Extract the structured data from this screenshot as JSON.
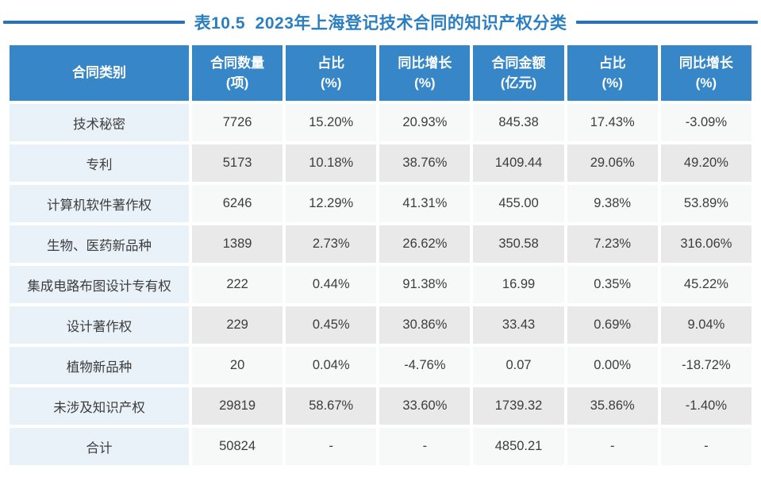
{
  "page": {
    "title": "表10.5  2023年上海登记技术合同的知识产权分类"
  },
  "colors": {
    "header_bg": "#3787c8",
    "header_text": "#ffffff",
    "category_bg": "#e9f1f9",
    "row_light_bg": "#f7f8f8",
    "row_dark_bg": "#e9e9e9",
    "title_blue": "#2b7ec0",
    "rule_blue": "#2a72b4",
    "cell_text": "#3d3d3d"
  },
  "chart_data": {
    "type": "table",
    "title": "表10.5  2023年上海登记技术合同的知识产权分类",
    "columns": [
      "合同类别",
      "合同数量\n(项)",
      "占比\n(%)",
      "同比增长\n(%)",
      "合同金额\n(亿元)",
      "占比\n(%)",
      "同比增长\n(%)"
    ],
    "rows": [
      [
        "技术秘密",
        "7726",
        "15.20%",
        "20.93%",
        "845.38",
        "17.43%",
        "-3.09%"
      ],
      [
        "专利",
        "5173",
        "10.18%",
        "38.76%",
        "1409.44",
        "29.06%",
        "49.20%"
      ],
      [
        "计算机软件著作权",
        "6246",
        "12.29%",
        "41.31%",
        "455.00",
        "9.38%",
        "53.89%"
      ],
      [
        "生物、医药新品种",
        "1389",
        "2.73%",
        "26.62%",
        "350.58",
        "7.23%",
        "316.06%"
      ],
      [
        "集成电路布图设计专有权",
        "222",
        "0.44%",
        "91.38%",
        "16.99",
        "0.35%",
        "45.22%"
      ],
      [
        "设计著作权",
        "229",
        "0.45%",
        "30.86%",
        "33.43",
        "0.69%",
        "9.04%"
      ],
      [
        "植物新品种",
        "20",
        "0.04%",
        "-4.76%",
        "0.07",
        "0.00%",
        "-18.72%"
      ],
      [
        "未涉及知识产权",
        "29819",
        "58.67%",
        "33.60%",
        "1739.32",
        "35.86%",
        "-1.40%"
      ],
      [
        "合计",
        "50824",
        "-",
        "-",
        "4850.21",
        "-",
        "-"
      ]
    ]
  }
}
